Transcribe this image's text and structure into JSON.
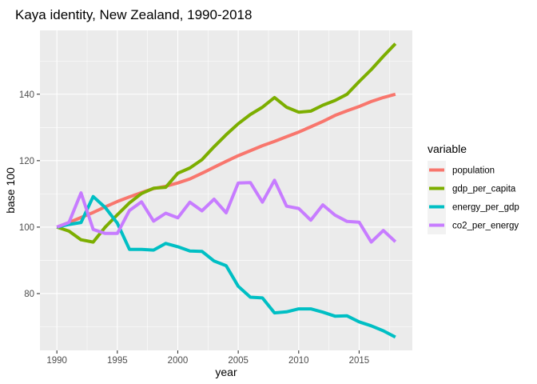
{
  "chart_data": {
    "type": "line",
    "title": "Kaya identity, New Zealand, 1990-2018",
    "xlabel": "year",
    "ylabel": "base 100",
    "xlim": [
      1988.6,
      2019.4
    ],
    "ylim": [
      62.9,
      159.2
    ],
    "x_ticks": [
      1990,
      1995,
      2000,
      2005,
      2010,
      2015
    ],
    "y_ticks": [
      80,
      100,
      120,
      140
    ],
    "grid": true,
    "legend": {
      "title": "variable",
      "position": "right"
    },
    "x": [
      1990,
      1991,
      1992,
      1993,
      1994,
      1995,
      1996,
      1997,
      1998,
      1999,
      2000,
      2001,
      2002,
      2003,
      2004,
      2005,
      2006,
      2007,
      2008,
      2009,
      2010,
      2011,
      2012,
      2013,
      2014,
      2015,
      2016,
      2017,
      2018
    ],
    "series": [
      {
        "name": "population",
        "color": "#F8766D",
        "values": [
          100,
          101.4,
          102.9,
          104.4,
          106.1,
          107.7,
          109.1,
          110.4,
          111.6,
          112.3,
          113.3,
          114.5,
          116.2,
          118.0,
          119.8,
          121.5,
          123.0,
          124.5,
          125.8,
          127.2,
          128.6,
          130.2,
          131.8,
          133.6,
          135.0,
          136.3,
          137.8,
          139.0,
          140.0
        ]
      },
      {
        "name": "gdp_per_capita",
        "color": "#7CAE00",
        "values": [
          100,
          98.8,
          96.2,
          95.5,
          100.0,
          103.7,
          107.3,
          110.1,
          111.7,
          112.0,
          116.2,
          117.8,
          120.3,
          124.2,
          127.8,
          131.1,
          133.9,
          136.1,
          139.0,
          136.1,
          134.6,
          134.9,
          136.7,
          138.1,
          140.0,
          143.8,
          147.4,
          151.4,
          155.2
        ]
      },
      {
        "name": "energy_per_gdp",
        "color": "#00BFC4",
        "values": [
          100,
          100.8,
          101.4,
          109.2,
          105.9,
          101.2,
          93.3,
          93.3,
          93.1,
          95.1,
          94.1,
          92.8,
          92.7,
          89.8,
          88.4,
          82.2,
          78.9,
          78.7,
          74.2,
          74.5,
          75.4,
          75.4,
          74.4,
          73.2,
          73.3,
          71.5,
          70.3,
          68.8,
          66.9
        ]
      },
      {
        "name": "co2_per_energy",
        "color": "#C77CFF",
        "values": [
          100,
          101.4,
          110.3,
          99.3,
          98.1,
          98.1,
          105.0,
          107.6,
          101.8,
          104.2,
          102.8,
          107.5,
          104.9,
          108.4,
          104.3,
          113.3,
          113.4,
          107.5,
          114.1,
          106.3,
          105.6,
          102.1,
          106.7,
          103.6,
          101.7,
          101.5,
          95.5,
          99.0,
          95.6
        ]
      }
    ]
  }
}
